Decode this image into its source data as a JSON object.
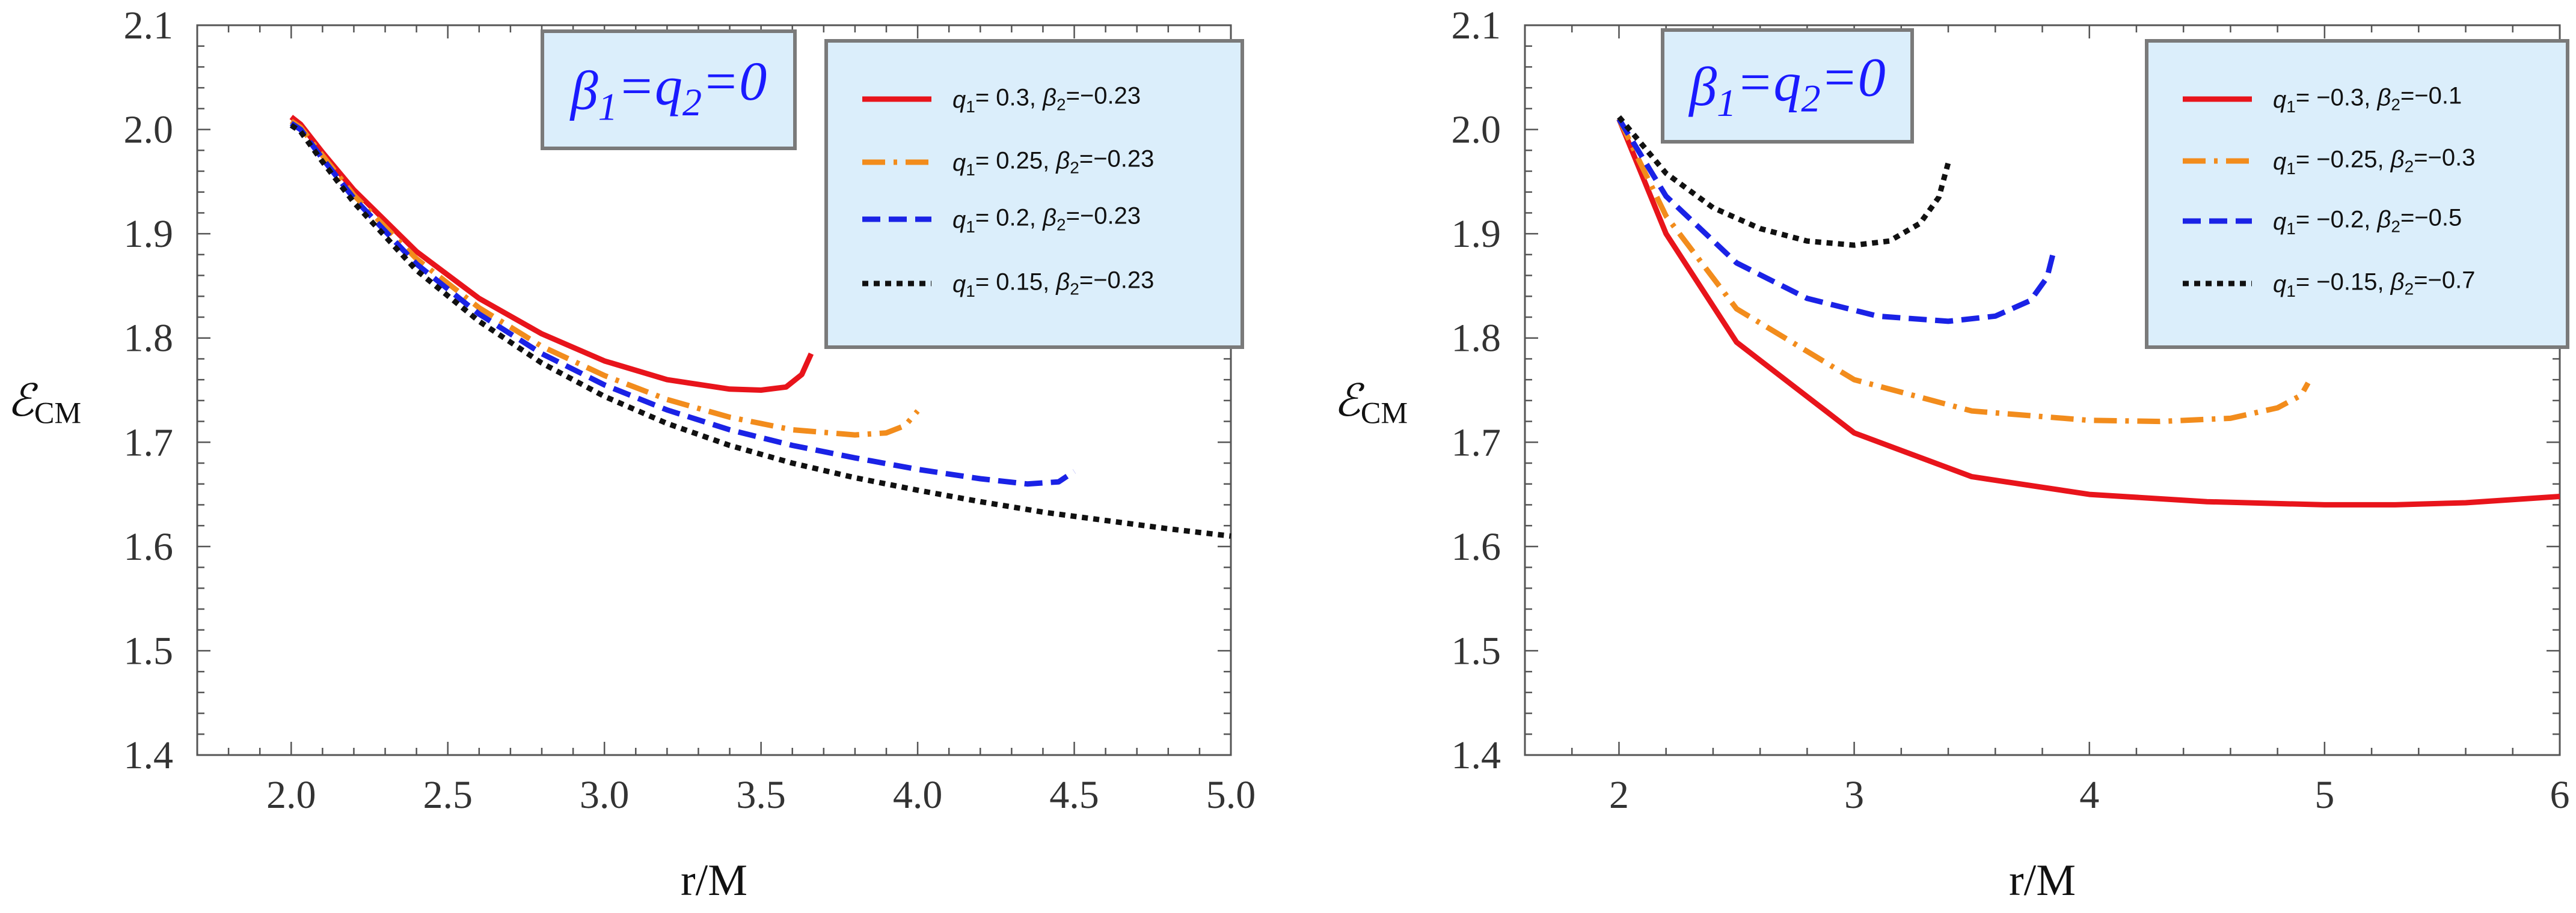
{
  "chart_data": [
    {
      "type": "line",
      "xlabel": "r/M",
      "ylabel": "ℰ",
      "ylabel_sub": "CM",
      "xlim": [
        1.7,
        5.0
      ],
      "ylim": [
        1.4,
        2.1
      ],
      "xticks": [
        2.0,
        2.5,
        3.0,
        3.5,
        4.0,
        4.5,
        5.0
      ],
      "xtick_labels": [
        "2.0",
        "2.5",
        "3.0",
        "3.5",
        "4.0",
        "4.5",
        "5.0"
      ],
      "yticks": [
        1.4,
        1.5,
        1.6,
        1.7,
        1.8,
        1.9,
        2.0,
        2.1
      ],
      "ytick_labels": [
        "1.4",
        "1.5",
        "1.6",
        "1.7",
        "1.8",
        "1.9",
        "2.0",
        "2.1"
      ],
      "annotation": {
        "b1": "β",
        "b1sub": "1",
        "eq1": "=",
        "q2": "q",
        "q2sub": "2",
        "eq2": "=0"
      },
      "series": [
        {
          "name": "q₁= 0.3, β₂=−0.23",
          "lq": "q",
          "lqsub": "1",
          "lqval": "= 0.3, ",
          "lb": "β",
          "lbsub": "2",
          "lbval": "=−0.23",
          "color": "#e8141b",
          "style": "solid",
          "x": [
            2.0,
            2.03,
            2.1,
            2.2,
            2.4,
            2.6,
            2.8,
            3.0,
            3.2,
            3.4,
            3.5,
            3.58,
            3.63,
            3.66
          ],
          "y": [
            2.012,
            2.005,
            1.978,
            1.942,
            1.883,
            1.838,
            1.804,
            1.778,
            1.76,
            1.751,
            1.75,
            1.753,
            1.765,
            1.785
          ]
        },
        {
          "name": "q₁= 0.25, β₂=−0.23",
          "lq": "q",
          "lqsub": "1",
          "lqval": "= 0.25, ",
          "lb": "β",
          "lbsub": "2",
          "lbval": "=−0.23",
          "color": "#f28c1c",
          "style": "dashdot",
          "x": [
            2.0,
            2.03,
            2.1,
            2.2,
            2.4,
            2.6,
            2.8,
            3.0,
            3.2,
            3.4,
            3.6,
            3.8,
            3.9,
            3.96,
            4.0
          ],
          "y": [
            2.008,
            2.002,
            1.975,
            1.937,
            1.876,
            1.829,
            1.792,
            1.764,
            1.741,
            1.724,
            1.712,
            1.707,
            1.709,
            1.716,
            1.73
          ]
        },
        {
          "name": "q₁= 0.2, β₂=−0.23",
          "lq": "q",
          "lqsub": "1",
          "lqval": "= 0.2, ",
          "lb": "β",
          "lbsub": "2",
          "lbval": "=−0.23",
          "color": "#1a22e6",
          "style": "dashed",
          "x": [
            2.0,
            2.03,
            2.1,
            2.2,
            2.4,
            2.6,
            2.8,
            3.0,
            3.2,
            3.4,
            3.6,
            3.8,
            4.0,
            4.2,
            4.35,
            4.45,
            4.5
          ],
          "y": [
            2.006,
            2.0,
            1.972,
            1.934,
            1.871,
            1.823,
            1.785,
            1.755,
            1.731,
            1.712,
            1.697,
            1.685,
            1.674,
            1.665,
            1.66,
            1.662,
            1.672
          ]
        },
        {
          "name": "q₁= 0.15, β₂=−0.23",
          "lq": "q",
          "lqsub": "1",
          "lqval": "= 0.15, ",
          "lb": "β",
          "lbsub": "2",
          "lbval": "=−0.23",
          "color": "#111111",
          "style": "dotted",
          "x": [
            2.0,
            2.03,
            2.1,
            2.2,
            2.4,
            2.6,
            2.8,
            3.0,
            3.2,
            3.4,
            3.6,
            3.8,
            4.0,
            4.2,
            4.4,
            4.6,
            4.8,
            5.0
          ],
          "y": [
            2.004,
            1.998,
            1.969,
            1.93,
            1.865,
            1.816,
            1.776,
            1.744,
            1.718,
            1.697,
            1.68,
            1.666,
            1.654,
            1.643,
            1.633,
            1.625,
            1.617,
            1.61
          ]
        }
      ]
    },
    {
      "type": "line",
      "xlabel": "r/M",
      "ylabel": "ℰ",
      "ylabel_sub": "CM",
      "xlim": [
        1.6,
        6.0
      ],
      "ylim": [
        1.4,
        2.1
      ],
      "xticks": [
        2,
        3,
        4,
        5,
        6
      ],
      "xtick_labels": [
        "2",
        "3",
        "4",
        "5",
        "6"
      ],
      "yticks": [
        1.4,
        1.5,
        1.6,
        1.7,
        1.8,
        1.9,
        2.0,
        2.1
      ],
      "ytick_labels": [
        "1.4",
        "1.5",
        "1.6",
        "1.7",
        "1.8",
        "1.9",
        "2.0",
        "2.1"
      ],
      "annotation": {
        "b1": "β",
        "b1sub": "1",
        "eq1": "=",
        "q2": "q",
        "q2sub": "2",
        "eq2": "=0"
      },
      "series": [
        {
          "name": "q₁= −0.3, β₂=−0.1",
          "lq": "q",
          "lqsub": "1",
          "lqval": "= −0.3, ",
          "lb": "β",
          "lbsub": "2",
          "lbval": "=−0.1",
          "color": "#e8141b",
          "style": "solid",
          "x": [
            2.0,
            2.2,
            2.5,
            3.0,
            3.5,
            4.0,
            4.5,
            5.0,
            5.3,
            5.6,
            6.0
          ],
          "y": [
            2.01,
            1.9,
            1.796,
            1.709,
            1.667,
            1.65,
            1.643,
            1.64,
            1.64,
            1.642,
            1.648
          ]
        },
        {
          "name": "q₁= −0.25, β₂=−0.3",
          "lq": "q",
          "lqsub": "1",
          "lqval": "= −0.25, ",
          "lb": "β",
          "lbsub": "2",
          "lbval": "=−0.3",
          "color": "#f28c1c",
          "style": "dashdot",
          "x": [
            2.0,
            2.2,
            2.5,
            3.0,
            3.5,
            4.0,
            4.3,
            4.6,
            4.8,
            4.9,
            4.93
          ],
          "y": [
            2.01,
            1.917,
            1.828,
            1.76,
            1.73,
            1.721,
            1.72,
            1.723,
            1.733,
            1.745,
            1.757
          ]
        },
        {
          "name": "q₁= −0.2, β₂=−0.5",
          "lq": "q",
          "lqsub": "1",
          "lqval": "= −0.2, ",
          "lb": "β",
          "lbsub": "2",
          "lbval": "=−0.5",
          "color": "#1a22e6",
          "style": "dashed",
          "x": [
            2.0,
            2.2,
            2.5,
            2.8,
            3.1,
            3.4,
            3.6,
            3.75,
            3.82,
            3.85
          ],
          "y": [
            2.01,
            1.936,
            1.872,
            1.838,
            1.821,
            1.816,
            1.821,
            1.836,
            1.858,
            1.885
          ]
        },
        {
          "name": "q₁= −0.15, β₂=−0.7",
          "lq": "q",
          "lqsub": "1",
          "lqval": "= −0.15, ",
          "lb": "β",
          "lbsub": "2",
          "lbval": "=−0.7",
          "color": "#111111",
          "style": "dotted",
          "x": [
            2.0,
            2.2,
            2.4,
            2.6,
            2.8,
            3.0,
            3.15,
            3.28,
            3.36,
            3.4
          ],
          "y": [
            2.012,
            1.958,
            1.925,
            1.905,
            1.893,
            1.889,
            1.893,
            1.91,
            1.935,
            1.968
          ]
        }
      ]
    }
  ]
}
